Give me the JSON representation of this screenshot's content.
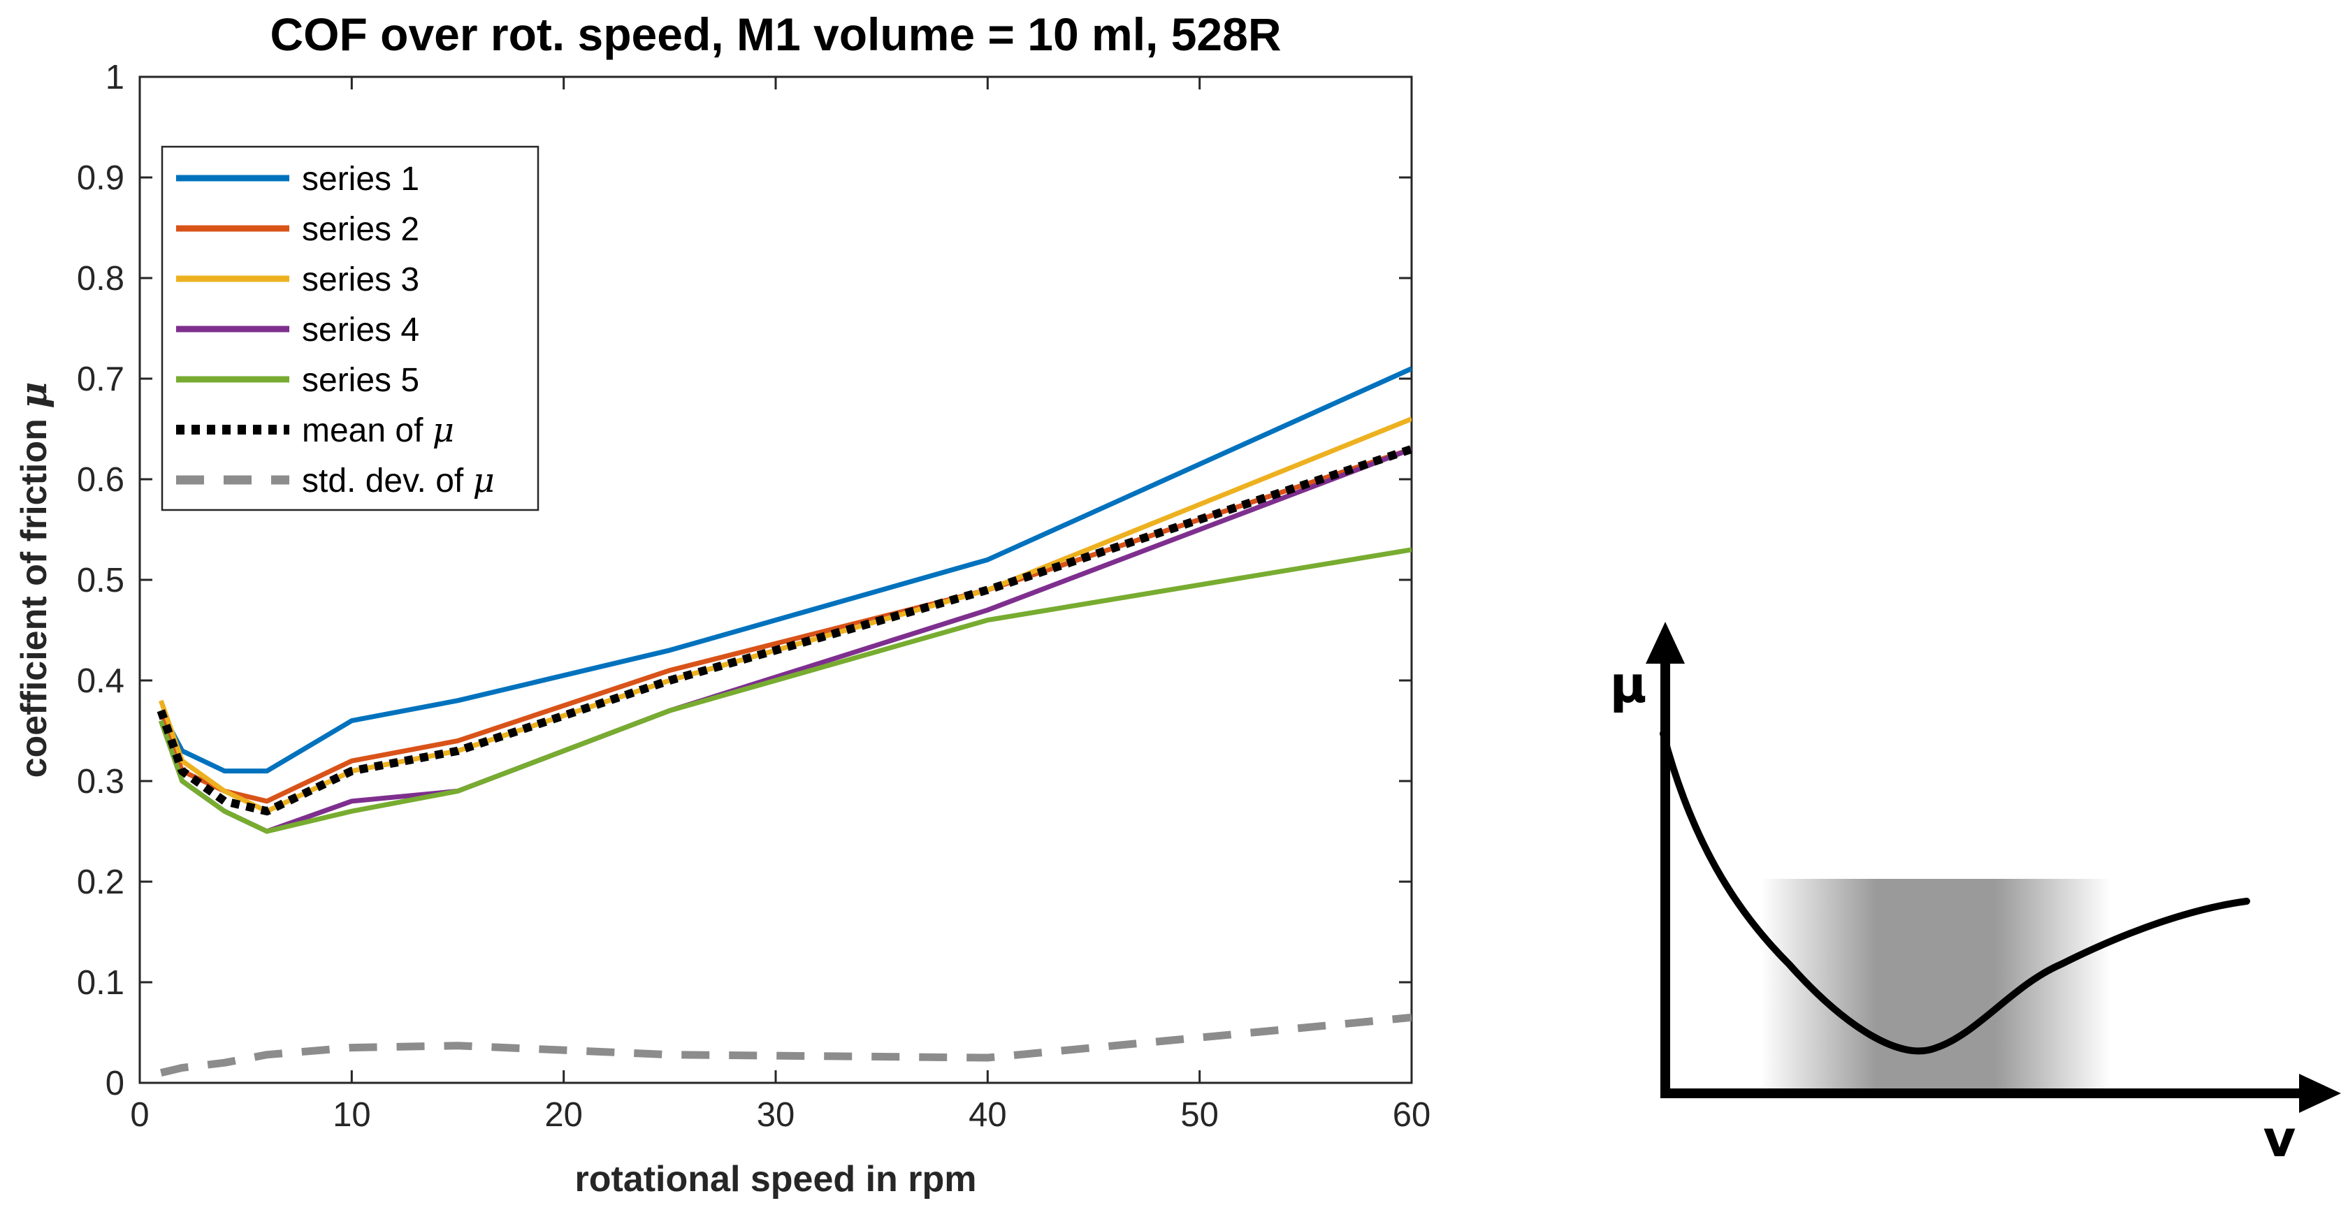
{
  "chart_data": [
    {
      "type": "line",
      "title": "COF over rot. speed, M1 volume = 10 ml, 528R",
      "xlabel": "rotational speed in rpm",
      "ylabel": "coefficient of friction μ",
      "ylabel_text": "coefficient of friction ",
      "ylabel_symbol": "μ",
      "xlim": [
        0,
        60
      ],
      "ylim": [
        0,
        1
      ],
      "xticks": [
        "0",
        "10",
        "20",
        "30",
        "40",
        "50",
        "60"
      ],
      "yticks": [
        "0",
        "0.1",
        "0.2",
        "0.3",
        "0.4",
        "0.5",
        "0.6",
        "0.7",
        "0.8",
        "0.9",
        "1"
      ],
      "xtick_values": [
        0,
        10,
        20,
        30,
        40,
        50,
        60
      ],
      "ytick_values": [
        0,
        0.1,
        0.2,
        0.3,
        0.4,
        0.5,
        0.6,
        0.7,
        0.8,
        0.9,
        1
      ],
      "grid": false,
      "legend_position": "top-left",
      "x": [
        1,
        2,
        4,
        6,
        10,
        15,
        25,
        40,
        60
      ],
      "series": [
        {
          "name": "series 1",
          "color": "#0072BD",
          "style": "solid",
          "values": [
            0.37,
            0.33,
            0.31,
            0.31,
            0.36,
            0.38,
            0.43,
            0.52,
            0.71
          ]
        },
        {
          "name": "series 2",
          "color": "#D95319",
          "style": "solid",
          "values": [
            0.37,
            0.31,
            0.29,
            0.28,
            0.32,
            0.34,
            0.41,
            0.49,
            0.63
          ]
        },
        {
          "name": "series 3",
          "color": "#EDB120",
          "style": "solid",
          "values": [
            0.38,
            0.32,
            0.29,
            0.27,
            0.31,
            0.33,
            0.4,
            0.49,
            0.66
          ]
        },
        {
          "name": "series 4",
          "color": "#7E2F8E",
          "style": "solid",
          "values": [
            0.36,
            0.3,
            0.27,
            0.25,
            0.28,
            0.29,
            0.37,
            0.47,
            0.63
          ]
        },
        {
          "name": "series 5",
          "color": "#77AC30",
          "style": "solid",
          "values": [
            0.36,
            0.3,
            0.27,
            0.25,
            0.27,
            0.29,
            0.37,
            0.46,
            0.53
          ]
        },
        {
          "name": "mean of μ",
          "label_text": "mean of ",
          "label_symbol": "μ",
          "color": "#000000",
          "style": "dotted",
          "values": [
            0.37,
            0.31,
            0.28,
            0.27,
            0.31,
            0.33,
            0.4,
            0.49,
            0.63
          ]
        },
        {
          "name": "std. dev. of μ",
          "label_text": "std. dev. of ",
          "label_symbol": "μ",
          "color": "#8C8C8C",
          "style": "dashed",
          "values": [
            0.01,
            0.015,
            0.02,
            0.028,
            0.035,
            0.037,
            0.028,
            0.025,
            0.065
          ]
        }
      ]
    },
    {
      "type": "line",
      "title": "",
      "xlabel": "v",
      "ylabel": "μ",
      "note": "schematic Stribeck-type curve with shaded minimum region; no numeric axes"
    }
  ],
  "colors": {
    "axis": "#262626",
    "sketch_line": "#000000",
    "shade_dark": "#9a9a9a"
  }
}
